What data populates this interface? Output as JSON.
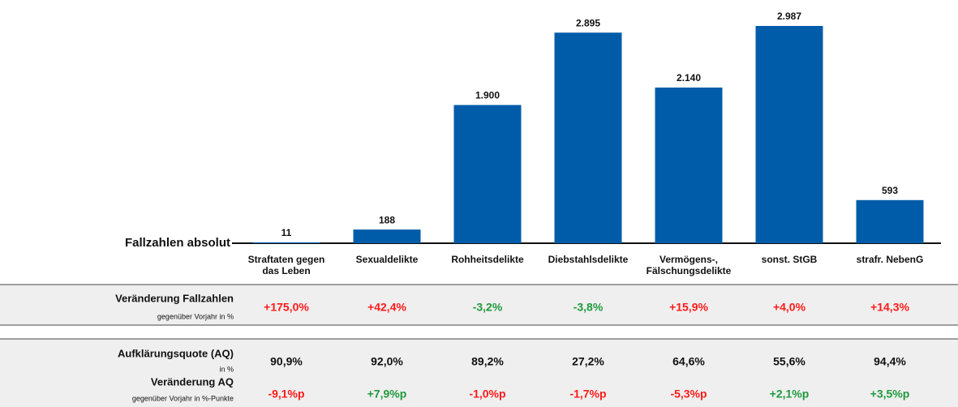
{
  "chart_data": {
    "type": "bar",
    "y_label": "Fallzahlen absolut",
    "categories": [
      "Straftaten gegen das Leben",
      "Sexualdelikte",
      "Rohheitsdelikte",
      "Diebstahlsdelikte",
      "Vermögens-, Fälschungsdelikte",
      "sonst. StGB",
      "strafr. NebenG"
    ],
    "values": [
      11,
      188,
      1900,
      2895,
      2140,
      2987,
      593
    ],
    "value_labels": [
      "11",
      "188",
      "1.900",
      "2.895",
      "2.140",
      "2.987",
      "593"
    ],
    "color": "#005ca9"
  },
  "table": {
    "rows": [
      {
        "label": "Veränderung Fallzahlen",
        "sublabel": "gegenüber Vorjahr in %",
        "values": [
          "+175,0%",
          "+42,4%",
          "-3,2%",
          "-3,8%",
          "+15,9%",
          "+4,0%",
          "+14,3%"
        ],
        "plus_color": "#ff1a1a",
        "minus_color": "#1f9a3c"
      },
      {
        "label": "Aufklärungsquote (AQ)",
        "sublabel": "in %",
        "values": [
          "90,9%",
          "92,0%",
          "89,2%",
          "27,2%",
          "64,6%",
          "55,6%",
          "94,4%"
        ]
      },
      {
        "label": "Veränderung AQ",
        "sublabel": "gegenüber Vorjahr in %-Punkte",
        "values": [
          "-9,1%p",
          "+7,9%p",
          "-1,0%p",
          "-1,7%p",
          "-5,3%p",
          "+2,1%p",
          "+3,5%p"
        ],
        "plus_color": "#1f9a3c",
        "minus_color": "#ff1a1a"
      }
    ]
  }
}
